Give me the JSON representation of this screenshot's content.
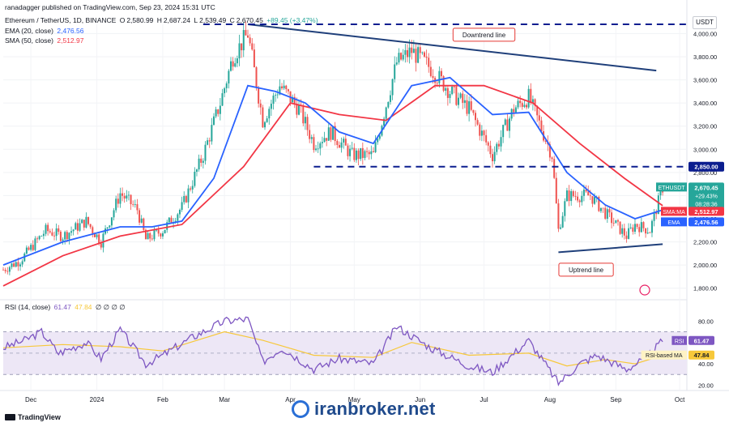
{
  "header": {
    "published": "ranadagger published on TradingView.com, Sep 23, 2024 15:31 UTC",
    "title": "Ethereum / TetherUS, 1D, BINANCE",
    "ohlc": [
      {
        "k": "O",
        "v": "2,580.99"
      },
      {
        "k": "H",
        "v": "2,687.24"
      },
      {
        "k": "L",
        "v": "2,539.49"
      },
      {
        "k": "C",
        "v": "2,670.45"
      }
    ],
    "change": "+89.45 (+3.47%)",
    "ema_label": "EMA (20, close)",
    "ema_value": "2,476.56",
    "sma_label": "SMA (50, close)",
    "sma_value": "2,512.97",
    "rsi_label": "RSI (14, close)",
    "rsi_value": "61.47",
    "rsi_ma_value": "47.84",
    "rsi_extra": "∅ ∅ ∅ ∅"
  },
  "currency_button": "USDT",
  "brand": "TradingView",
  "watermark": "iranbroker.net",
  "colors": {
    "up": "#26a69a",
    "down": "#ef5350",
    "ema": "#2962ff",
    "sma": "#f23645",
    "trend": "#1f3f7a",
    "dash": "#0b1d8f",
    "rsi": "#7e57c2",
    "rsi_ma": "#f7c83a",
    "rsi_band": "#ede7f6",
    "overbought": "#c8e6c9"
  },
  "chart_data": {
    "type": "candlestick",
    "symbol": "ETHUSDT",
    "ylim": [
      1700,
      4080
    ],
    "y_ticks": [
      1800,
      2000,
      2200,
      2400,
      2600,
      2800,
      3000,
      3200,
      3400,
      3600,
      3800,
      4000
    ],
    "y_tick_labels": [
      "1,800.00",
      "2,000.00",
      "2,200.00",
      "2,400.00",
      "2,600.00",
      "2,800.00",
      "3,000.00",
      "3,200.00",
      "3,400.00",
      "3,600.00",
      "3,800.00",
      "4,000.00"
    ],
    "x_labels": [
      {
        "label": "Dec",
        "date": "2023-12-01"
      },
      {
        "label": "2024",
        "date": "2024-01-01"
      },
      {
        "label": "Feb",
        "date": "2024-02-01"
      },
      {
        "label": "Mar",
        "date": "2024-03-01"
      },
      {
        "label": "Apr",
        "date": "2024-04-01"
      },
      {
        "label": "May",
        "date": "2024-05-01"
      },
      {
        "label": "Jun",
        "date": "2024-06-01"
      },
      {
        "label": "Jul",
        "date": "2024-07-01"
      },
      {
        "label": "Aug",
        "date": "2024-08-01"
      },
      {
        "label": "Sep",
        "date": "2024-09-01"
      },
      {
        "label": "Oct",
        "date": "2024-10-01"
      }
    ],
    "close_path": [
      [
        "2023-11-18",
        1960
      ],
      [
        "2023-11-26",
        2040
      ],
      [
        "2023-12-08",
        2300
      ],
      [
        "2023-12-16",
        2250
      ],
      [
        "2023-12-27",
        2380
      ],
      [
        "2024-01-03",
        2200
      ],
      [
        "2024-01-12",
        2620
      ],
      [
        "2024-01-20",
        2480
      ],
      [
        "2024-01-24",
        2220
      ],
      [
        "2024-02-01",
        2300
      ],
      [
        "2024-02-10",
        2500
      ],
      [
        "2024-02-20",
        2950
      ],
      [
        "2024-02-28",
        3400
      ],
      [
        "2024-03-05",
        3800
      ],
      [
        "2024-03-12",
        4000
      ],
      [
        "2024-03-19",
        3250
      ],
      [
        "2024-03-27",
        3550
      ],
      [
        "2024-04-05",
        3350
      ],
      [
        "2024-04-12",
        3050
      ],
      [
        "2024-04-20",
        3150
      ],
      [
        "2024-04-30",
        2950
      ],
      [
        "2024-05-10",
        2950
      ],
      [
        "2024-05-21",
        3750
      ],
      [
        "2024-05-28",
        3850
      ],
      [
        "2024-06-06",
        3700
      ],
      [
        "2024-06-15",
        3500
      ],
      [
        "2024-06-24",
        3350
      ],
      [
        "2024-07-05",
        2950
      ],
      [
        "2024-07-15",
        3350
      ],
      [
        "2024-07-22",
        3450
      ],
      [
        "2024-08-02",
        2950
      ],
      [
        "2024-08-05",
        2300
      ],
      [
        "2024-08-09",
        2600
      ],
      [
        "2024-08-20",
        2600
      ],
      [
        "2024-08-27",
        2450
      ],
      [
        "2024-09-06",
        2250
      ],
      [
        "2024-09-10",
        2350
      ],
      [
        "2024-09-17",
        2300
      ],
      [
        "2024-09-23",
        2670
      ]
    ],
    "ema_path": [
      [
        "2023-11-18",
        2000
      ],
      [
        "2023-12-16",
        2200
      ],
      [
        "2024-01-12",
        2330
      ],
      [
        "2024-01-27",
        2330
      ],
      [
        "2024-02-10",
        2380
      ],
      [
        "2024-02-25",
        2750
      ],
      [
        "2024-03-12",
        3550
      ],
      [
        "2024-03-25",
        3500
      ],
      [
        "2024-04-08",
        3400
      ],
      [
        "2024-04-24",
        3150
      ],
      [
        "2024-05-10",
        3050
      ],
      [
        "2024-05-28",
        3550
      ],
      [
        "2024-06-15",
        3620
      ],
      [
        "2024-07-05",
        3300
      ],
      [
        "2024-07-22",
        3320
      ],
      [
        "2024-08-09",
        2800
      ],
      [
        "2024-08-27",
        2520
      ],
      [
        "2024-09-10",
        2400
      ],
      [
        "2024-09-23",
        2476.56
      ]
    ],
    "sma_path": [
      [
        "2023-11-18",
        1820
      ],
      [
        "2023-12-16",
        2080
      ],
      [
        "2024-01-12",
        2250
      ],
      [
        "2024-02-10",
        2350
      ],
      [
        "2024-03-10",
        2850
      ],
      [
        "2024-04-01",
        3400
      ],
      [
        "2024-04-24",
        3300
      ],
      [
        "2024-05-16",
        3250
      ],
      [
        "2024-06-08",
        3550
      ],
      [
        "2024-07-01",
        3550
      ],
      [
        "2024-07-24",
        3400
      ],
      [
        "2024-08-15",
        3050
      ],
      [
        "2024-09-05",
        2750
      ],
      [
        "2024-09-23",
        2512.97
      ]
    ],
    "downtrend_line": [
      [
        "2024-03-12",
        4080
      ],
      [
        "2024-09-20",
        3680
      ]
    ],
    "uptrend_line": [
      [
        "2024-08-05",
        2110
      ],
      [
        "2024-09-23",
        2180
      ]
    ],
    "top_dashed_level": {
      "value": 4080,
      "from": "2024-02-20",
      "to": "2024-10-12"
    },
    "support_level": {
      "value": 2850,
      "label": "2,850.00",
      "from": "2024-04-12",
      "to": "2024-10-12"
    },
    "annotations": [
      {
        "text": "Downtrend line",
        "date": "2024-07-01",
        "value": 3990
      },
      {
        "text": "Uptrend line",
        "date": "2024-08-18",
        "value": 1960
      }
    ],
    "price_labels": [
      {
        "name": "ETHUSDT",
        "value": "2,670.45",
        "extra": "+29.43%",
        "time": "08:28:36",
        "color": "#26a69a"
      },
      {
        "name": "SMA:MA",
        "value": "2,512.97",
        "color": "#f23645"
      },
      {
        "name": "EMA",
        "value": "2,476.56",
        "color": "#2962ff"
      }
    ],
    "rsi": {
      "ylim": [
        15,
        100
      ],
      "y_ticks": [
        20,
        40,
        60,
        80
      ],
      "y_tick_labels": [
        "20.00",
        "40.00",
        "60.00",
        "80.00"
      ],
      "band": [
        30,
        70
      ],
      "values_path": [
        [
          "2023-11-18",
          55
        ],
        [
          "2023-11-28",
          62
        ],
        [
          "2023-12-06",
          70
        ],
        [
          "2023-12-14",
          50
        ],
        [
          "2023-12-27",
          60
        ],
        [
          "2024-01-03",
          45
        ],
        [
          "2024-01-12",
          72
        ],
        [
          "2024-01-24",
          40
        ],
        [
          "2024-02-01",
          48
        ],
        [
          "2024-02-15",
          65
        ],
        [
          "2024-03-01",
          80
        ],
        [
          "2024-03-12",
          82
        ],
        [
          "2024-03-19",
          42
        ],
        [
          "2024-03-28",
          55
        ],
        [
          "2024-04-12",
          35
        ],
        [
          "2024-04-24",
          45
        ],
        [
          "2024-05-10",
          40
        ],
        [
          "2024-05-21",
          75
        ],
        [
          "2024-06-06",
          55
        ],
        [
          "2024-06-24",
          38
        ],
        [
          "2024-07-05",
          32
        ],
        [
          "2024-07-22",
          62
        ],
        [
          "2024-08-05",
          22
        ],
        [
          "2024-08-15",
          40
        ],
        [
          "2024-08-23",
          48
        ],
        [
          "2024-09-06",
          35
        ],
        [
          "2024-09-15",
          45
        ],
        [
          "2024-09-23",
          61.47
        ]
      ],
      "ma_path": [
        [
          "2023-11-18",
          55
        ],
        [
          "2023-12-16",
          58
        ],
        [
          "2024-01-12",
          56
        ],
        [
          "2024-02-01",
          52
        ],
        [
          "2024-03-01",
          70
        ],
        [
          "2024-03-19",
          62
        ],
        [
          "2024-04-12",
          48
        ],
        [
          "2024-05-10",
          46
        ],
        [
          "2024-05-28",
          60
        ],
        [
          "2024-06-24",
          48
        ],
        [
          "2024-07-22",
          50
        ],
        [
          "2024-08-09",
          38
        ],
        [
          "2024-08-27",
          44
        ],
        [
          "2024-09-10",
          40
        ],
        [
          "2024-09-23",
          47.84
        ]
      ],
      "labels": [
        {
          "name": "RSI",
          "value": "61.47",
          "color": "#7e57c2"
        },
        {
          "name": "RSI-based MA",
          "value": "47.84",
          "color": "#f7c83a"
        }
      ]
    }
  }
}
